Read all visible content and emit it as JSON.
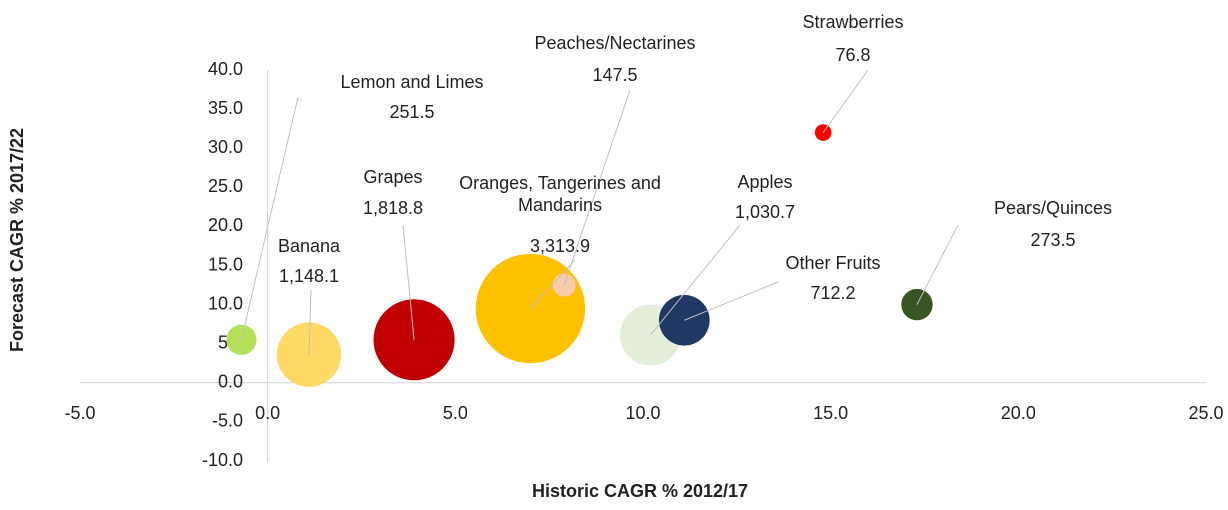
{
  "chart_data": {
    "type": "bubble",
    "xlabel": "Historic CAGR % 2012/17",
    "ylabel": "Forecast CAGR %  2017/22",
    "xlim": [
      -5,
      25
    ],
    "ylim": [
      -10,
      40
    ],
    "xticks": [
      {
        "value": -5,
        "label": "-5.0"
      },
      {
        "value": 0,
        "label": "0.0"
      },
      {
        "value": 5,
        "label": "5.0"
      },
      {
        "value": 10,
        "label": "10.0"
      },
      {
        "value": 15,
        "label": "15.0"
      },
      {
        "value": 20,
        "label": "20.0"
      },
      {
        "value": 25,
        "label": "25.0"
      }
    ],
    "yticks": [
      {
        "value": -10,
        "label": "-10.0"
      },
      {
        "value": -5,
        "label": "-5.0"
      },
      {
        "value": 0,
        "label": "0.0"
      },
      {
        "value": 5,
        "label": "5.0"
      },
      {
        "value": 10,
        "label": "10.0"
      },
      {
        "value": 15,
        "label": "15.0"
      },
      {
        "value": 20,
        "label": "20.0"
      },
      {
        "value": 25,
        "label": "25.0"
      },
      {
        "value": 30,
        "label": "30.0"
      },
      {
        "value": 35,
        "label": "35.0"
      },
      {
        "value": 40,
        "label": "40.0"
      }
    ],
    "series": [
      {
        "name": "Lemon and Limes",
        "color": "#b4e05a",
        "x": [
          -0.7
        ],
        "values": [
          5.5
        ],
        "sizes": [
          251.5
        ],
        "size_labels": [
          "251.5"
        ]
      },
      {
        "name": "Banana",
        "color": "#ffd966",
        "x": [
          1.1
        ],
        "values": [
          3.6
        ],
        "sizes": [
          1148.1
        ],
        "size_labels": [
          "1,148.1"
        ]
      },
      {
        "name": "Grapes",
        "color": "#c00000",
        "x": [
          3.9
        ],
        "values": [
          5.5
        ],
        "sizes": [
          1818.8
        ],
        "size_labels": [
          "1,818.8"
        ]
      },
      {
        "name": "Oranges, Tangerines and Mandarins",
        "color": "#ffc000",
        "x": [
          7.0
        ],
        "values": [
          9.5
        ],
        "sizes": [
          3313.9
        ],
        "size_labels": [
          "3,313.9"
        ]
      },
      {
        "name": "Peaches/Nectarines",
        "color": "#f8cbad",
        "x": [
          7.9
        ],
        "values": [
          12.5
        ],
        "sizes": [
          147.5
        ],
        "size_labels": [
          "147.5"
        ]
      },
      {
        "name": "Apples",
        "color": "#e2efda",
        "x": [
          10.2
        ],
        "values": [
          6.1
        ],
        "sizes": [
          1030.7
        ],
        "size_labels": [
          "1,030.7"
        ]
      },
      {
        "name": "Other Fruits",
        "color": "#1f3864",
        "x": [
          11.1
        ],
        "values": [
          8.0
        ],
        "sizes": [
          712.2
        ],
        "size_labels": [
          "712.2"
        ]
      },
      {
        "name": "Strawberries",
        "color": "#ff0000",
        "x": [
          14.8
        ],
        "values": [
          32.0
        ],
        "sizes": [
          76.8
        ],
        "size_labels": [
          "76.8"
        ]
      },
      {
        "name": "Pears/Quinces",
        "color": "#375623",
        "x": [
          17.3
        ],
        "values": [
          10.0
        ],
        "sizes": [
          273.5
        ],
        "size_labels": [
          "273.5"
        ]
      }
    ]
  }
}
